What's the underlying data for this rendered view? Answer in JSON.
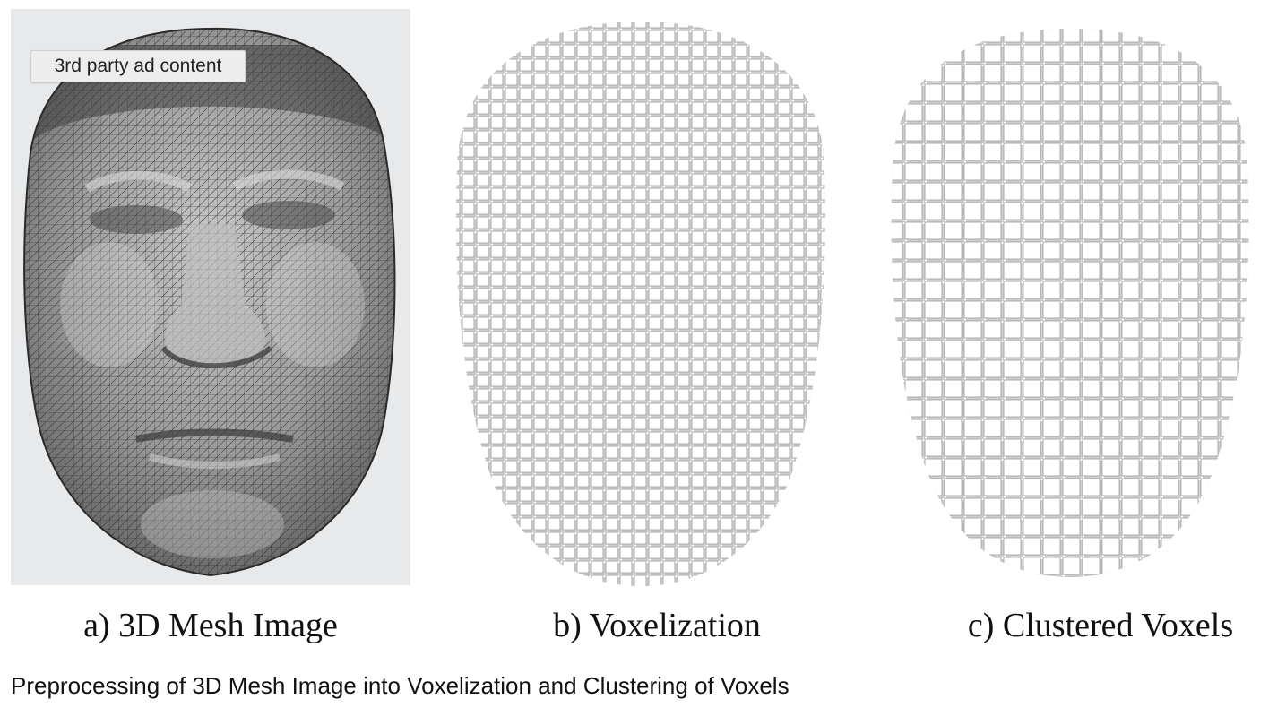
{
  "figure": {
    "panels": [
      {
        "id": "a",
        "label": "a) 3D Mesh Image",
        "icon": "face-mesh-icon"
      },
      {
        "id": "b",
        "label": "b) Voxelization",
        "icon": "face-voxel-icon"
      },
      {
        "id": "c",
        "label": "c) Clustered Voxels",
        "icon": "face-clustered-voxel-icon"
      }
    ],
    "caption": "Preprocessing of 3D Mesh Image into Voxelization and Clustering of Voxels"
  },
  "ad_badge": {
    "label": "3rd party ad content"
  },
  "colors": {
    "mesh_background": "#e8e9ea",
    "mesh_face": "#9a9a9a",
    "mesh_line": "#2e2e2e",
    "voxel_fill": "#ffffff",
    "voxel_edge": "#9b9b9b"
  }
}
